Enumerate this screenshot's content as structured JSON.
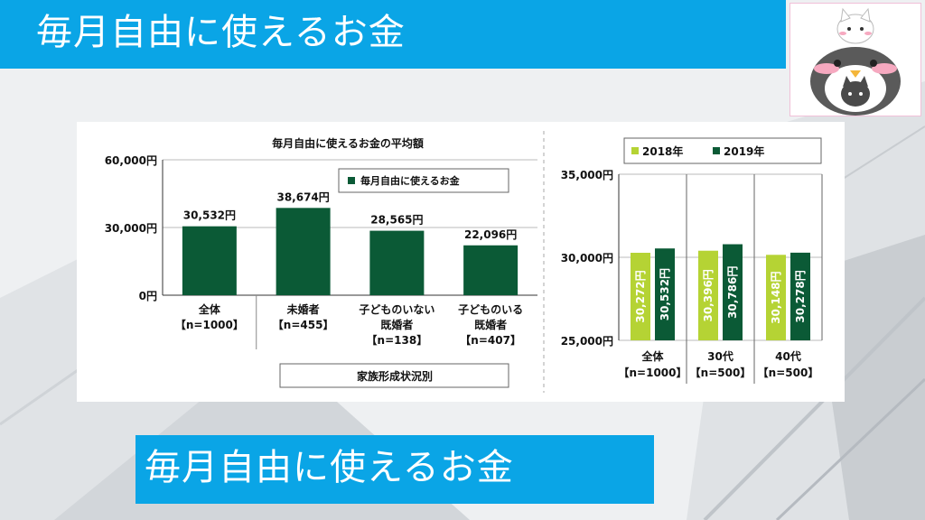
{
  "banner": {
    "title": "毎月自由に使えるお金"
  },
  "caption": {
    "title": "毎月自由に使えるお金"
  },
  "colors": {
    "banner": "#0aa5e6",
    "dark_green": "#0b5a36",
    "lime": "#b5d334"
  },
  "chart_data": [
    {
      "type": "bar",
      "title": "毎月自由に使えるお金の平均額",
      "legend": "毎月自由に使えるお金",
      "legend_position": "top-right",
      "categories": [
        {
          "line1": "全体",
          "line2": "【n=1000】"
        },
        {
          "line1": "未婚者",
          "line2": "【n=455】"
        },
        {
          "line1": "子どものいない",
          "line2": "既婚者",
          "line3": "【n=138】"
        },
        {
          "line1": "子どものいる",
          "line2": "既婚者",
          "line3": "【n=407】"
        }
      ],
      "values": [
        30532,
        38674,
        28565,
        22096
      ],
      "value_labels": [
        "30,532円",
        "38,674円",
        "28,565円",
        "22,096円"
      ],
      "ylim": [
        0,
        60000
      ],
      "yticks": [
        0,
        30000,
        60000
      ],
      "ytick_labels": [
        "0円",
        "30,000円",
        "60,000円"
      ],
      "group_label": "家族形成状況別",
      "grid": true
    },
    {
      "type": "bar",
      "legend_position": "top",
      "categories": [
        {
          "line1": "全体",
          "line2": "【n=1000】"
        },
        {
          "line1": "30代",
          "line2": "【n=500】"
        },
        {
          "line1": "40代",
          "line2": "【n=500】"
        }
      ],
      "series": [
        {
          "name": "2018年",
          "color": "#b5d334",
          "values": [
            30272,
            30396,
            30148
          ],
          "labels": [
            "30,272円",
            "30,396円",
            "30,148円"
          ]
        },
        {
          "name": "2019年",
          "color": "#0b5a36",
          "values": [
            30532,
            30786,
            30278
          ],
          "labels": [
            "30,532円",
            "30,786円",
            "30,278円"
          ]
        }
      ],
      "ylim": [
        25000,
        35000
      ],
      "yticks": [
        25000,
        30000,
        35000
      ],
      "ytick_labels": [
        "25,000円",
        "30,000円",
        "35,000円"
      ]
    }
  ]
}
